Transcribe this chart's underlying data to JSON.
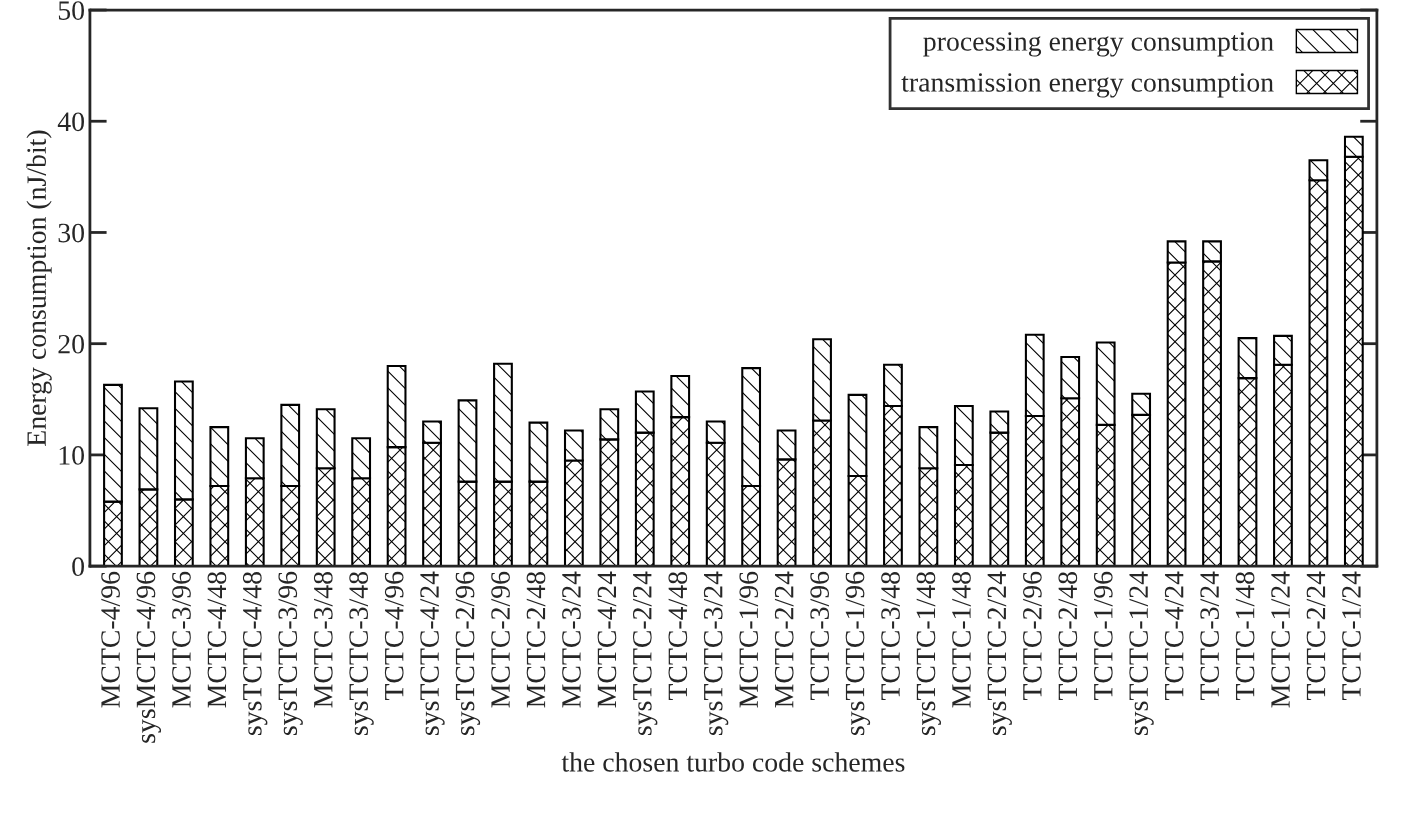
{
  "chart_data": {
    "type": "bar",
    "stacked": true,
    "xlabel": "the chosen turbo code schemes",
    "ylabel": "Energy consumption (nJ/bit)",
    "categories": [
      "MCTC-4/96",
      "sysMCTC-4/96",
      "MCTC-3/96",
      "MCTC-4/48",
      "sysTCTC-4/48",
      "sysTCTC-3/96",
      "MCTC-3/48",
      "sysTCTC-3/48",
      "TCTC-4/96",
      "sysTCTC-4/24",
      "sysTCTC-2/96",
      "MCTC-2/96",
      "MCTC-2/48",
      "MCTC-3/24",
      "MCTC-4/24",
      "sysTCTC-2/24",
      "TCTC-4/48",
      "sysTCTC-3/24",
      "MCTC-1/96",
      "MCTC-2/24",
      "TCTC-3/96",
      "sysTCTC-1/96",
      "TCTC-3/48",
      "sysTCTC-1/48",
      "MCTC-1/48",
      "sysTCTC-2/24",
      "TCTC-2/96",
      "TCTC-2/48",
      "TCTC-1/96",
      "sysTCTC-1/24",
      "TCTC-4/24",
      "TCTC-3/24",
      "TCTC-1/48",
      "MCTC-1/24",
      "TCTC-2/24",
      "TCTC-1/24"
    ],
    "series": [
      {
        "name": "transmission energy consumption",
        "color": "#000000",
        "values": [
          5.8,
          6.9,
          6.0,
          7.2,
          7.9,
          7.2,
          8.8,
          7.9,
          10.7,
          11.1,
          7.6,
          7.6,
          7.6,
          9.5,
          11.4,
          12.0,
          13.4,
          11.1,
          7.2,
          9.6,
          13.1,
          8.1,
          14.4,
          8.8,
          9.1,
          12.0,
          13.5,
          15.1,
          12.7,
          13.6,
          27.3,
          27.4,
          16.9,
          18.1,
          34.7,
          36.8
        ]
      },
      {
        "name": "processing energy consumption",
        "color": "#000000",
        "values": [
          10.5,
          7.3,
          10.6,
          5.3,
          3.6,
          7.3,
          5.3,
          3.6,
          7.3,
          1.9,
          7.3,
          10.6,
          5.3,
          2.7,
          2.7,
          3.7,
          3.7,
          1.9,
          10.6,
          2.6,
          7.3,
          7.3,
          3.7,
          3.7,
          5.3,
          1.9,
          7.3,
          3.7,
          7.4,
          1.9,
          1.9,
          1.8,
          3.6,
          2.6,
          1.8,
          1.8
        ]
      }
    ],
    "ylim": [
      0,
      50
    ],
    "yticks": [
      0,
      10,
      20,
      30,
      40,
      50
    ],
    "grid": false,
    "legend": "top right"
  }
}
